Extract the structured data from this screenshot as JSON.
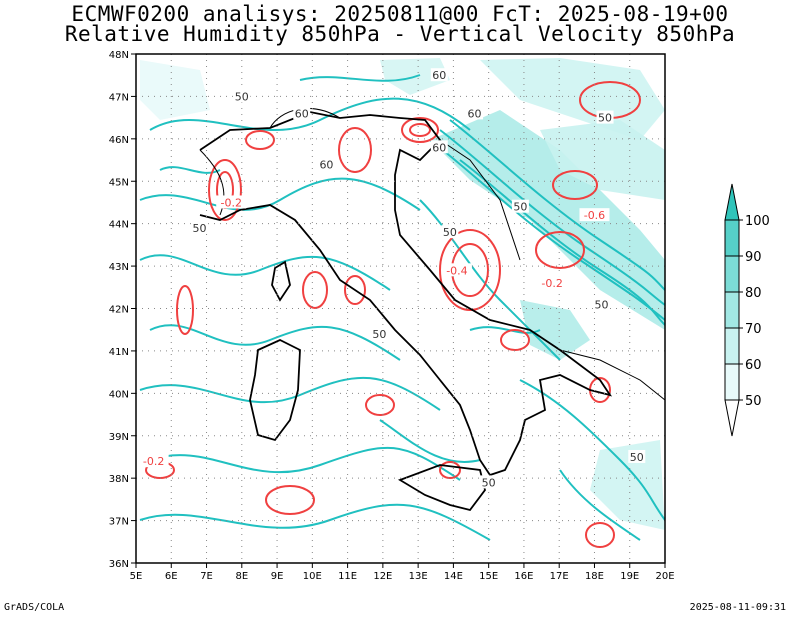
{
  "header": {
    "title_line1": "ECMWF0200 analisys: 20250811@00 FcT: 2025-08-19+00",
    "title_line2": "Relative Humidity 850hPa - Vertical Velocity 850hPa"
  },
  "map": {
    "region": "Italy",
    "lon_range": [
      5,
      20
    ],
    "lat_range": [
      36,
      48
    ],
    "lon_labels": [
      "5E",
      "6E",
      "7E",
      "8E",
      "9E",
      "10E",
      "11E",
      "12E",
      "13E",
      "14E",
      "15E",
      "16E",
      "17E",
      "18E",
      "19E",
      "20E"
    ],
    "lat_labels": [
      "36N",
      "37N",
      "38N",
      "39N",
      "40N",
      "41N",
      "42N",
      "43N",
      "44N",
      "45N",
      "46N",
      "47N",
      "48N"
    ],
    "grid": "dotted",
    "rh_contour_labels": [
      {
        "text": "60",
        "lon": 13.6,
        "lat": 47.5
      },
      {
        "text": "60",
        "lon": 14.6,
        "lat": 46.6
      },
      {
        "text": "50",
        "lon": 8.0,
        "lat": 47.0
      },
      {
        "text": "60",
        "lon": 9.7,
        "lat": 46.6
      },
      {
        "text": "60",
        "lon": 10.4,
        "lat": 45.4
      },
      {
        "text": "60",
        "lon": 13.6,
        "lat": 45.8
      },
      {
        "text": "50",
        "lon": 18.3,
        "lat": 46.5
      },
      {
        "text": "50",
        "lon": 6.8,
        "lat": 43.9
      },
      {
        "text": "50",
        "lon": 15.9,
        "lat": 44.4
      },
      {
        "text": "50",
        "lon": 13.9,
        "lat": 43.8
      },
      {
        "text": "50",
        "lon": 18.2,
        "lat": 42.1
      },
      {
        "text": "50",
        "lon": 11.9,
        "lat": 41.4
      },
      {
        "text": "50",
        "lon": 19.2,
        "lat": 38.5
      },
      {
        "text": "50",
        "lon": 15.0,
        "lat": 37.9
      }
    ],
    "vv_contour_labels": [
      {
        "text": "-0.2",
        "lon": 7.7,
        "lat": 44.5
      },
      {
        "text": "-0.6",
        "lon": 18.0,
        "lat": 44.2
      },
      {
        "text": "-0.4",
        "lon": 14.1,
        "lat": 42.9
      },
      {
        "text": "-0.2",
        "lon": 16.8,
        "lat": 42.6
      },
      {
        "text": "-0.2",
        "lon": 5.5,
        "lat": 38.4
      }
    ],
    "colors": {
      "rh_contour": "#20c0c0",
      "vv_contour": "#f04040",
      "coast": "#000000",
      "grid": "#888888"
    }
  },
  "colorbar": {
    "labels": [
      "50",
      "60",
      "70",
      "80",
      "90",
      "100"
    ],
    "colors": [
      "#e8fafa",
      "#c8f2f0",
      "#a2e8e4",
      "#7cdcd6",
      "#56d0c8",
      "#30c4ba"
    ]
  },
  "footer": {
    "left": "GrADS/COLA",
    "right": "2025-08-11-09:31"
  }
}
